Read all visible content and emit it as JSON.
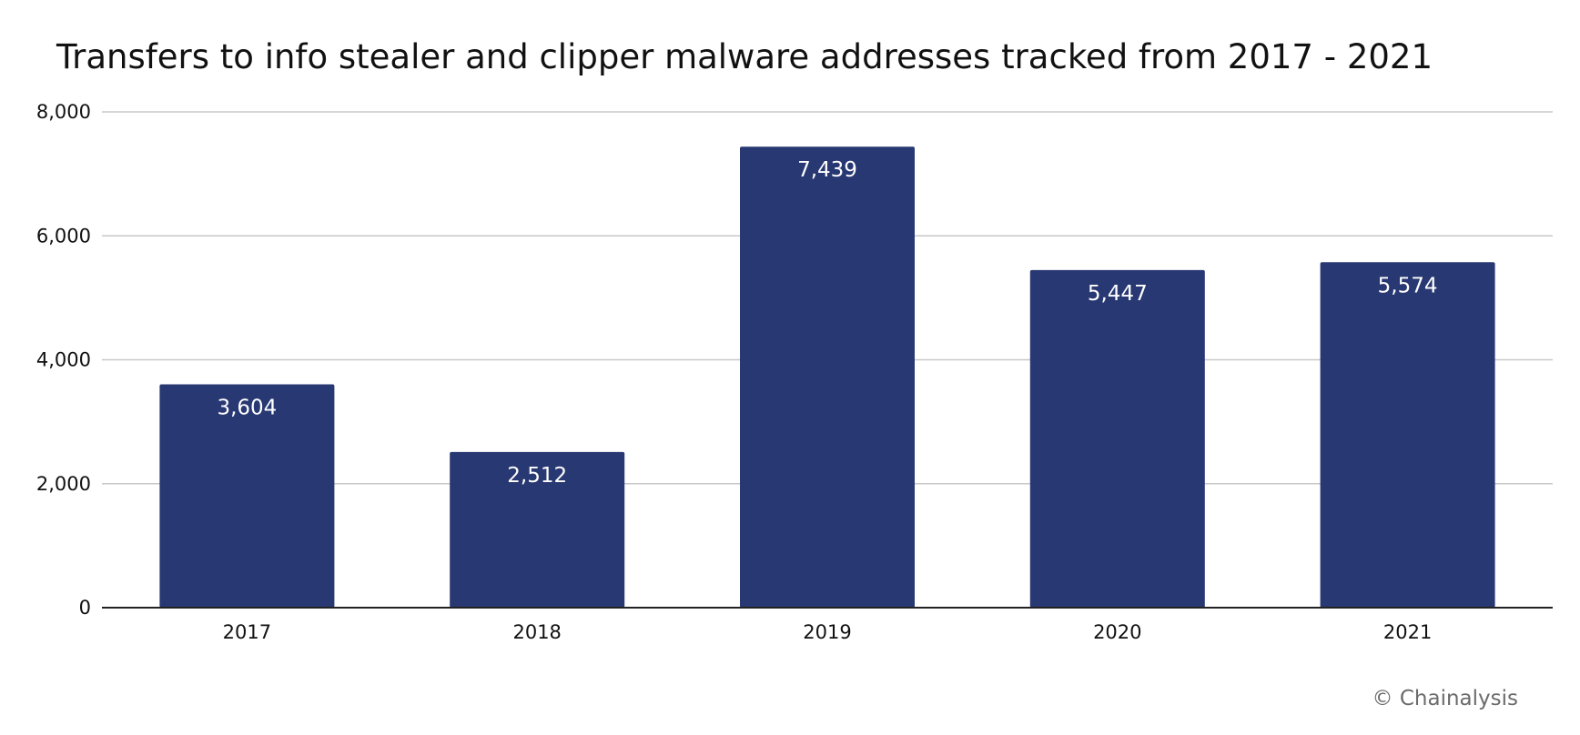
{
  "chart_data": {
    "type": "bar",
    "title": "Transfers to info stealer and clipper malware addresses tracked from 2017 - 2021",
    "xlabel": "",
    "ylabel": "",
    "categories": [
      "2017",
      "2018",
      "2019",
      "2020",
      "2021"
    ],
    "values": [
      3604,
      2512,
      7439,
      5447,
      5574
    ],
    "data_labels": [
      "3,604",
      "2,512",
      "7,439",
      "5,447",
      "5,574"
    ],
    "ylim": [
      0,
      8000
    ],
    "yticks": [
      0,
      2000,
      4000,
      6000,
      8000
    ],
    "ytick_labels": [
      "0",
      "2,000",
      "4,000",
      "6,000",
      "8,000"
    ],
    "grid": true,
    "legend": "none",
    "bar_color": "#283872"
  },
  "credit": "© Chainalysis"
}
